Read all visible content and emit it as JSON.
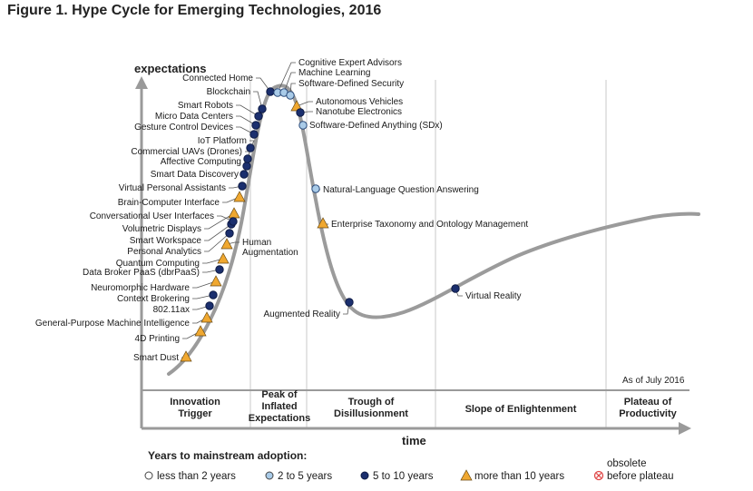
{
  "figure": {
    "title": "Figure 1. Hype Cycle for Emerging Technologies, 2016",
    "y_axis_label": "expectations",
    "x_axis_label": "time",
    "as_of": "As of July 2016"
  },
  "phases": [
    "Innovation Trigger",
    "Peak of Inflated Expectations",
    "Trough of Disillusionment",
    "Slope of Enlightenment",
    "Plateau of Productivity"
  ],
  "legend": {
    "title": "Years to mainstream adoption:",
    "items": [
      {
        "key": "lt2",
        "label": "less than 2 years",
        "color": "#ffffff",
        "shape": "circle"
      },
      {
        "key": "2to5",
        "label": "2 to 5 years",
        "color": "#a9cbe8",
        "shape": "circle"
      },
      {
        "key": "5to10",
        "label": "5 to 10 years",
        "color": "#1b2f6e",
        "shape": "circle"
      },
      {
        "key": "gt10",
        "label": "more than 10 years",
        "color": "#f0a830",
        "shape": "triangle"
      },
      {
        "key": "obsolete",
        "label": "obsolete before plateau",
        "color": "#e04848",
        "shape": "x-circle"
      }
    ]
  },
  "technologies": [
    {
      "name": "Smart Dust",
      "category": "gt10"
    },
    {
      "name": "4D Printing",
      "category": "gt10"
    },
    {
      "name": "General-Purpose Machine Intelligence",
      "category": "gt10"
    },
    {
      "name": "802.11ax",
      "category": "5to10"
    },
    {
      "name": "Context Brokering",
      "category": "5to10"
    },
    {
      "name": "Neuromorphic Hardware",
      "category": "gt10"
    },
    {
      "name": "Data Broker PaaS (dbrPaaS)",
      "category": "5to10"
    },
    {
      "name": "Quantum Computing",
      "category": "gt10"
    },
    {
      "name": "Human Augmentation",
      "category": "gt10"
    },
    {
      "name": "Personal Analytics",
      "category": "5to10"
    },
    {
      "name": "Smart Workspace",
      "category": "5to10"
    },
    {
      "name": "Volumetric Displays",
      "category": "gt10"
    },
    {
      "name": "Conversational User Interfaces",
      "category": "5to10"
    },
    {
      "name": "Brain-Computer Interface",
      "category": "gt10"
    },
    {
      "name": "Virtual Personal Assistants",
      "category": "5to10"
    },
    {
      "name": "Smart Data Discovery",
      "category": "5to10"
    },
    {
      "name": "Affective Computing",
      "category": "5to10"
    },
    {
      "name": "Commercial UAVs (Drones)",
      "category": "5to10"
    },
    {
      "name": "IoT Platform",
      "category": "5to10"
    },
    {
      "name": "Gesture Control Devices",
      "category": "5to10"
    },
    {
      "name": "Micro Data Centers",
      "category": "5to10"
    },
    {
      "name": "Smart Robots",
      "category": "5to10"
    },
    {
      "name": "Blockchain",
      "category": "5to10"
    },
    {
      "name": "Connected Home",
      "category": "5to10"
    },
    {
      "name": "Cognitive Expert Advisors",
      "category": "2to5"
    },
    {
      "name": "Machine Learning",
      "category": "2to5"
    },
    {
      "name": "Software-Defined Security",
      "category": "2to5"
    },
    {
      "name": "Autonomous Vehicles",
      "category": "gt10"
    },
    {
      "name": "Nanotube Electronics",
      "category": "5to10"
    },
    {
      "name": "Software-Defined Anything (SDx)",
      "category": "2to5"
    },
    {
      "name": "Natural-Language Question Answering",
      "category": "2to5"
    },
    {
      "name": "Enterprise Taxonomy and Ontology Management",
      "category": "gt10"
    },
    {
      "name": "Augmented Reality",
      "category": "5to10"
    },
    {
      "name": "Virtual Reality",
      "category": "5to10"
    }
  ]
}
